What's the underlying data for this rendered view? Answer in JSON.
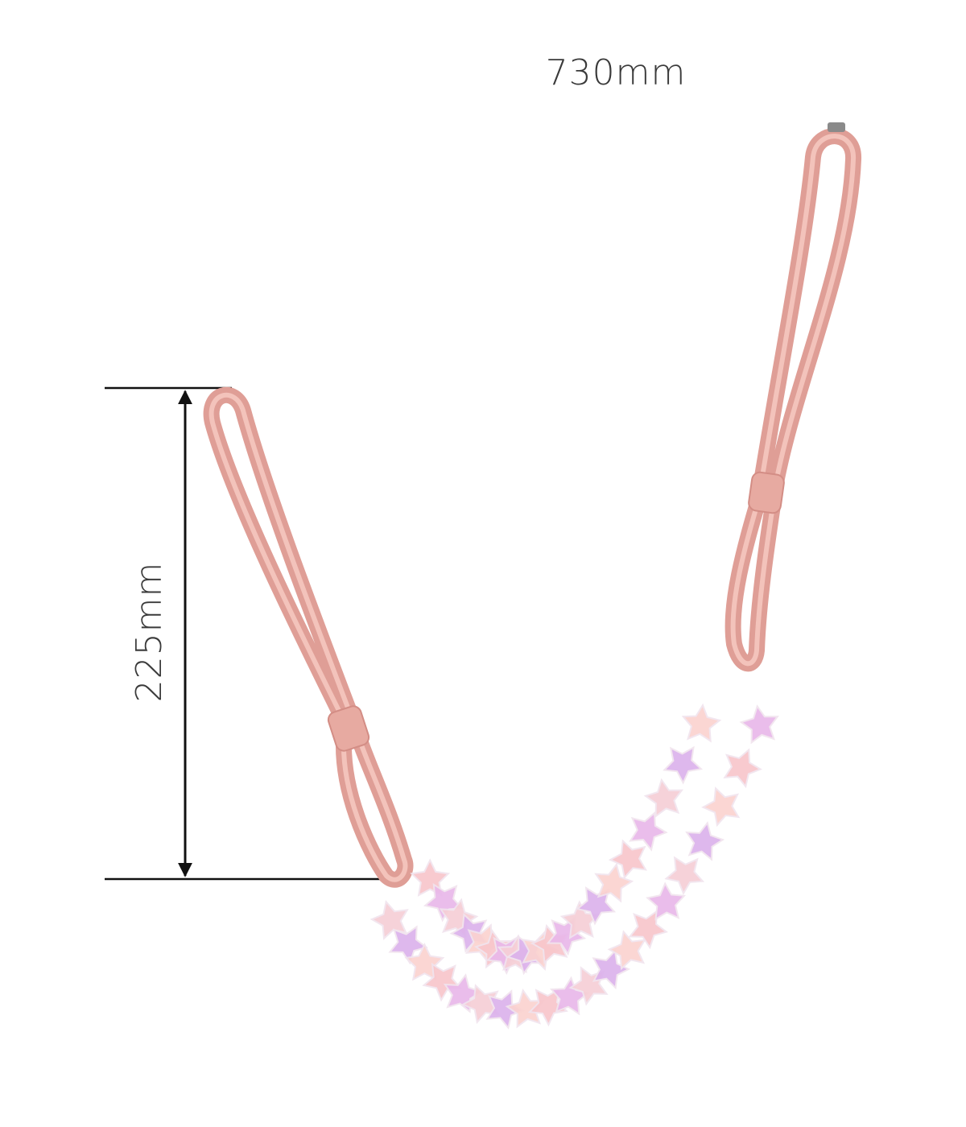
{
  "dimensions": {
    "width_label": "730mm",
    "height_label": "225mm"
  }
}
